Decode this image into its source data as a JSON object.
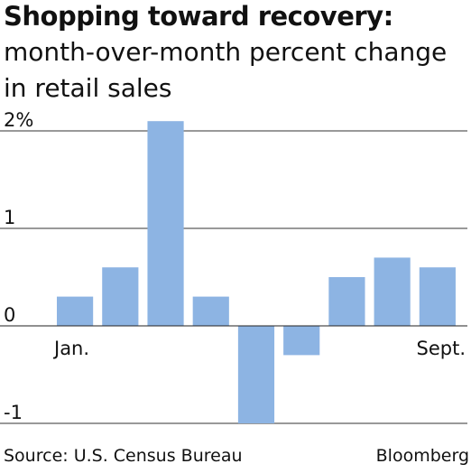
{
  "chart_data": {
    "type": "bar",
    "title": "Shopping toward recovery:",
    "subtitle": "month-over-month percent change in retail sales",
    "categories": [
      "Jan.",
      "",
      "",
      "",
      "",
      "",
      "",
      "",
      "Sept."
    ],
    "values": [
      0.3,
      0.6,
      2.1,
      0.3,
      -1.0,
      -0.3,
      0.5,
      0.7,
      0.6
    ],
    "ylim": [
      -1,
      2
    ],
    "yticks": [
      {
        "value": 2,
        "label": "2%"
      },
      {
        "value": 1,
        "label": "1"
      },
      {
        "value": 0,
        "label": "0"
      },
      {
        "value": -1,
        "label": "-1"
      }
    ],
    "grid": true,
    "legend": "none",
    "bar_color": "#8db4e3",
    "source": "Source: U.S. Census Bureau",
    "credit": "Bloomberg"
  }
}
